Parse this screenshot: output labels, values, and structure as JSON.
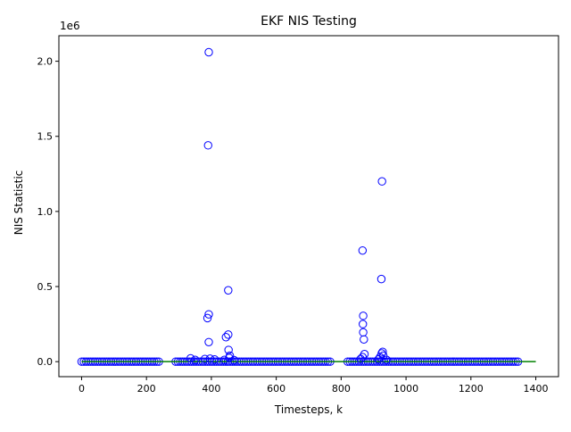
{
  "chart_data": {
    "type": "scatter",
    "title": "EKF NIS Testing",
    "xlabel": "Timesteps, k",
    "ylabel": "NIS Statistic",
    "y_offset_label": "1e6",
    "xlim": [
      -70,
      1470
    ],
    "ylim": [
      -100000,
      2170000
    ],
    "x_ticks": [
      0,
      200,
      400,
      600,
      800,
      1000,
      1200,
      1400
    ],
    "x_tick_labels": [
      "0",
      "200",
      "400",
      "600",
      "800",
      "1000",
      "1200",
      "1400"
    ],
    "y_ticks": [
      0,
      500000,
      1000000,
      1500000,
      2000000
    ],
    "y_tick_labels": [
      "0.0",
      "0.5",
      "1.0",
      "1.5",
      "2.0"
    ],
    "grid": false,
    "marker_color": "#0000ff",
    "threshold_color": "#008000",
    "threshold_line": {
      "x": [
        0,
        1400
      ],
      "y": [
        0,
        0
      ]
    },
    "dense_segments": [
      [
        0,
        240
      ],
      [
        290,
        770
      ],
      [
        820,
        1350
      ]
    ],
    "dense_step": 7,
    "outliers": [
      {
        "x": 392,
        "y": 2060000
      },
      {
        "x": 390,
        "y": 1440000
      },
      {
        "x": 926,
        "y": 1200000
      },
      {
        "x": 866,
        "y": 740000
      },
      {
        "x": 924,
        "y": 550000
      },
      {
        "x": 452,
        "y": 475000
      },
      {
        "x": 392,
        "y": 315000
      },
      {
        "x": 388,
        "y": 290000
      },
      {
        "x": 868,
        "y": 305000
      },
      {
        "x": 867,
        "y": 250000
      },
      {
        "x": 868,
        "y": 195000
      },
      {
        "x": 870,
        "y": 148000
      },
      {
        "x": 452,
        "y": 180000
      },
      {
        "x": 445,
        "y": 163000
      },
      {
        "x": 392,
        "y": 130000
      },
      {
        "x": 453,
        "y": 78000
      },
      {
        "x": 928,
        "y": 65000
      },
      {
        "x": 925,
        "y": 55000
      },
      {
        "x": 872,
        "y": 50000
      },
      {
        "x": 457,
        "y": 40000
      },
      {
        "x": 930,
        "y": 40000
      },
      {
        "x": 866,
        "y": 30000
      },
      {
        "x": 920,
        "y": 30000
      },
      {
        "x": 455,
        "y": 25000
      },
      {
        "x": 336,
        "y": 22000
      },
      {
        "x": 380,
        "y": 18000
      },
      {
        "x": 396,
        "y": 20000
      },
      {
        "x": 410,
        "y": 15000
      },
      {
        "x": 350,
        "y": 12000
      },
      {
        "x": 440,
        "y": 12000
      },
      {
        "x": 470,
        "y": 10000
      },
      {
        "x": 860,
        "y": 18000
      },
      {
        "x": 915,
        "y": 15000
      },
      {
        "x": 940,
        "y": 12000
      }
    ]
  }
}
